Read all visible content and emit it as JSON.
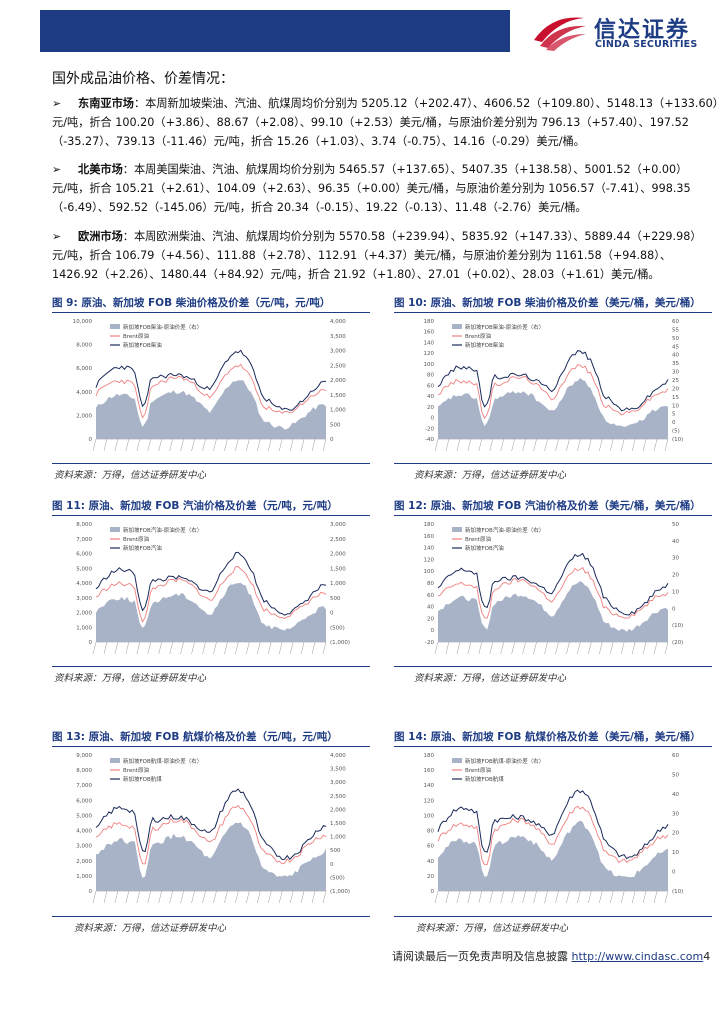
{
  "header": {
    "brand_cn": "信达证券",
    "brand_en": "CINDA SECURITIES",
    "colors": {
      "brand": "#1e3c84",
      "logo_accent": "#c8102e"
    }
  },
  "section_title": "国外成品油价格、价差情况：",
  "markets": [
    {
      "name": "东南亚市场",
      "lines": [
        "：本周新加坡柴油、汽油、航煤周均价分别为 5205.12（+202.47）、4606.52（+109.80）、5148.13（+133.60）",
        "元/吨，折合 100.20（+3.86）、88.67（+2.08）、99.10（+2.53）美元/桶，与原油价差分别为 796.13（+57.40）、197.52",
        "（-35.27）、739.13（-11.46）元/吨，折合 15.26（+1.03）、3.74（-0.75）、14.16（-0.29）美元/桶。"
      ]
    },
    {
      "name": "北美市场",
      "lines": [
        "：本周美国柴油、汽油、航煤周均价分别为 5465.57（+137.65）、5407.35（+138.58）、5001.52（+0.00）",
        "元/吨，折合 105.21（+2.61）、104.09（+2.63）、96.35（+0.00）美元/桶，与原油价差分别为 1056.57（-7.41）、998.35",
        "（-6.49）、592.52（-145.06）元/吨，折合 20.34（-0.15）、19.22（-0.13）、11.48（-2.76）美元/桶。"
      ]
    },
    {
      "name": "欧洲市场",
      "lines": [
        "：本周欧洲柴油、汽油、航煤周均价分别为 5570.58（+239.94）、5835.92（+147.33）、5889.44（+229.98）",
        "元/吨，折合 106.79（+4.56）、111.88（+2.78）、112.91（+4.37）美元/桶，与原油价差分别为 1161.58（+94.88）、",
        "1426.92（+2.26）、1480.44（+84.92）元/吨，折合 21.92（+1.80）、27.01（+0.02）、28.03（+1.61）美元/桶。"
      ]
    }
  ],
  "bullet_glyph": "➢",
  "figures": [
    {
      "title": "图 9:  原油、新加坡 FOB 柴油价格及价差（元/吨，元/吨）",
      "source": "资料来源：万得，信达证券研发中心",
      "legend": [
        "新加坡FOB柴油-原油价差（右）",
        "Brent原油",
        "新加坡FOB柴油"
      ],
      "left_ticks": [
        "10,000",
        "8,000",
        "6,000",
        "4,000",
        "2,000",
        "0"
      ],
      "right_ticks": [
        "4,000",
        "3,500",
        "3,000",
        "2,500",
        "2,000",
        "1,500",
        "1,000",
        "500",
        "0"
      ]
    },
    {
      "title": "图 10:  原油、新加坡 FOB 柴油价格及价差（美元/桶，美元/桶）",
      "source": "资料来源：万得，信达证券研发中心",
      "legend": [
        "新加坡FOB柴油-原油价差（右）",
        "Brent原油",
        "新加坡FOB柴油"
      ],
      "left_ticks": [
        "180",
        "160",
        "140",
        "120",
        "100",
        "80",
        "60",
        "40",
        "20",
        "0",
        "-20",
        "-40"
      ],
      "right_ticks": [
        "60",
        "55",
        "50",
        "45",
        "40",
        "35",
        "30",
        "25",
        "20",
        "15",
        "10",
        "5",
        "0",
        "(5)",
        "(10)"
      ]
    },
    {
      "title": "图 11:  原油、新加坡 FOB 汽油价格及价差（元/吨，元/吨）",
      "source": "资料来源：万得，信达证券研发中心",
      "legend": [
        "新加坡FOB汽油-原油价差（右）",
        "Brent原油",
        "新加坡FOB汽油"
      ],
      "left_ticks": [
        "8,000",
        "7,000",
        "6,000",
        "5,000",
        "4,000",
        "3,000",
        "2,000",
        "1,000",
        "0"
      ],
      "right_ticks": [
        "3,000",
        "2,500",
        "2,000",
        "1,500",
        "1,000",
        "500",
        "0",
        "(500)",
        "(1,000)"
      ]
    },
    {
      "title": "图 12:  原油、新加坡 FOB 汽油价格及价差（美元/桶，美元/桶）",
      "source": "资料来源：万得，信达证券研发中心",
      "legend": [
        "新加坡FOB汽油-原油价差（右）",
        "Brent原油",
        "新加坡FOB汽油"
      ],
      "left_ticks": [
        "180",
        "160",
        "140",
        "120",
        "100",
        "80",
        "60",
        "40",
        "20",
        "0",
        "-20"
      ],
      "right_ticks": [
        "50",
        "40",
        "30",
        "20",
        "10",
        "0",
        "(10)",
        "(20)"
      ]
    },
    {
      "title": "图 13:  原油、新加坡 FOB 航煤价格及价差（元/吨，元/吨）",
      "source": "资料来源：万得，信达证券研发中心",
      "legend": [
        "新加坡FOB航煤-原油价差（右）",
        "Brent原油",
        "新加坡FOB航煤"
      ],
      "left_ticks": [
        "9,000",
        "8,000",
        "7,000",
        "6,000",
        "5,000",
        "4,000",
        "3,000",
        "2,000",
        "1,000",
        "0"
      ],
      "right_ticks": [
        "4,000",
        "3,500",
        "3,000",
        "2,500",
        "2,000",
        "1,500",
        "1,000",
        "500",
        "0",
        "(500)",
        "(1,000)"
      ]
    },
    {
      "title": "图 14:  原油、新加坡 FOB 航煤价格及价差（美元/桶，美元/桶）",
      "source": "资料来源：万得，信达证券研发中心",
      "legend": [
        "新加坡FOB航煤-原油价差（右）",
        "Brent原油",
        "新加坡FOB航煤"
      ],
      "left_ticks": [
        "180",
        "160",
        "140",
        "120",
        "100",
        "80",
        "60",
        "40",
        "20",
        "0"
      ],
      "right_ticks": [
        "60",
        "50",
        "40",
        "30",
        "20",
        "10",
        "0",
        "(10)"
      ]
    }
  ],
  "chart_colors": {
    "spread_area": "#a9b3c7",
    "brent_line": "#f08080",
    "product_line": "#1a2a5a"
  },
  "footer": {
    "text": "请阅读最后一页免责声明及信息披露 ",
    "link": "http://www.cindasc.com",
    "page": "4"
  }
}
